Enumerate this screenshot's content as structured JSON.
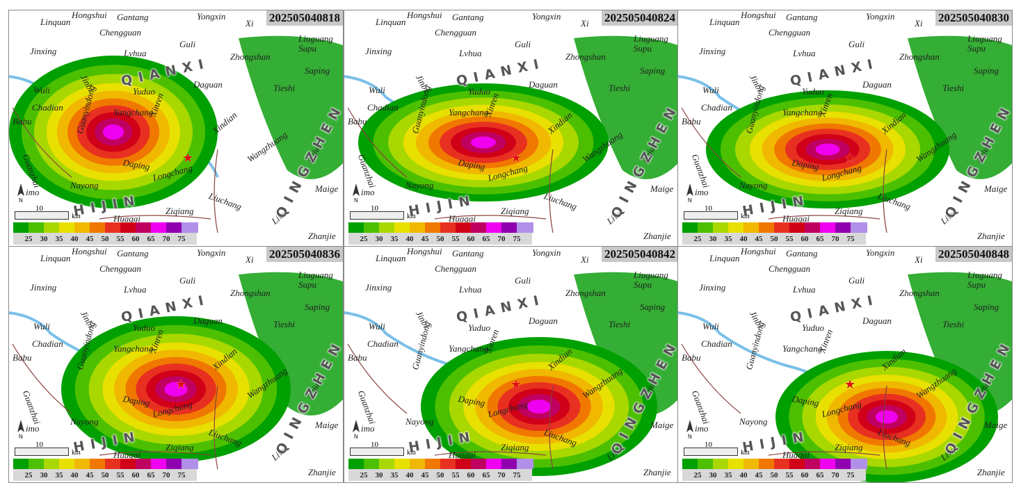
{
  "panels": [
    {
      "stamp": "202505040818",
      "cx": 150,
      "cy": 175,
      "rx": 150,
      "ry": 110,
      "star": [
        258,
        212
      ]
    },
    {
      "stamp": "202505040824",
      "cx": 200,
      "cy": 190,
      "rx": 180,
      "ry": 85,
      "star": [
        248,
        212
      ]
    },
    {
      "stamp": "202505040830",
      "cx": 215,
      "cy": 200,
      "rx": 175,
      "ry": 85,
      "star": [
        248,
        212
      ]
    },
    {
      "stamp": "202505040836",
      "cx": 240,
      "cy": 205,
      "rx": 165,
      "ry": 105,
      "star": [
        248,
        198
      ]
    },
    {
      "stamp": "202505040842",
      "cx": 280,
      "cy": 230,
      "rx": 170,
      "ry": 100,
      "star": [
        248,
        198
      ]
    },
    {
      "stamp": "202505040848",
      "cx": 300,
      "cy": 245,
      "rx": 160,
      "ry": 95,
      "star": [
        248,
        198
      ]
    }
  ],
  "towns": [
    "Linquan",
    "Hongshui",
    "Gantang",
    "Yongxin",
    "Xi",
    "Chengguan",
    "Liuguang",
    "Supu",
    "Jinxing",
    "Lvhua",
    "Guli",
    "Zhongshan",
    "Saping",
    "Jinbi",
    "Yuduo",
    "Daguan",
    "Tieshi",
    "Wuli",
    "Chadian",
    "Yangchang",
    "Xinren",
    "Babu",
    "Guanyindong",
    "Xindian",
    "Guanzhai",
    "Daping",
    "Wangzhuang",
    "Anju",
    "Longchang",
    "Nayong",
    "Maige",
    "Liuchang",
    "Ziqiang",
    "Liwo",
    "Huagai",
    "Zhanjie",
    "imo"
  ],
  "regions": {
    "qianxi": "QIANXI",
    "qingzhen": "QINGZHEN",
    "zhijin": "HIJIN"
  },
  "legend": {
    "ticks": [
      "25",
      "30",
      "35",
      "40",
      "45",
      "50",
      "55",
      "60",
      "65",
      "70",
      "75"
    ],
    "colors": [
      "#00a000",
      "#4cc000",
      "#a8d800",
      "#e8e000",
      "#f0b800",
      "#f07800",
      "#e83020",
      "#d00018",
      "#c00060",
      "#f000f0",
      "#9000b0",
      "#b090e8"
    ]
  },
  "scale": {
    "value": "10",
    "unit": "km"
  },
  "north_label": "N"
}
